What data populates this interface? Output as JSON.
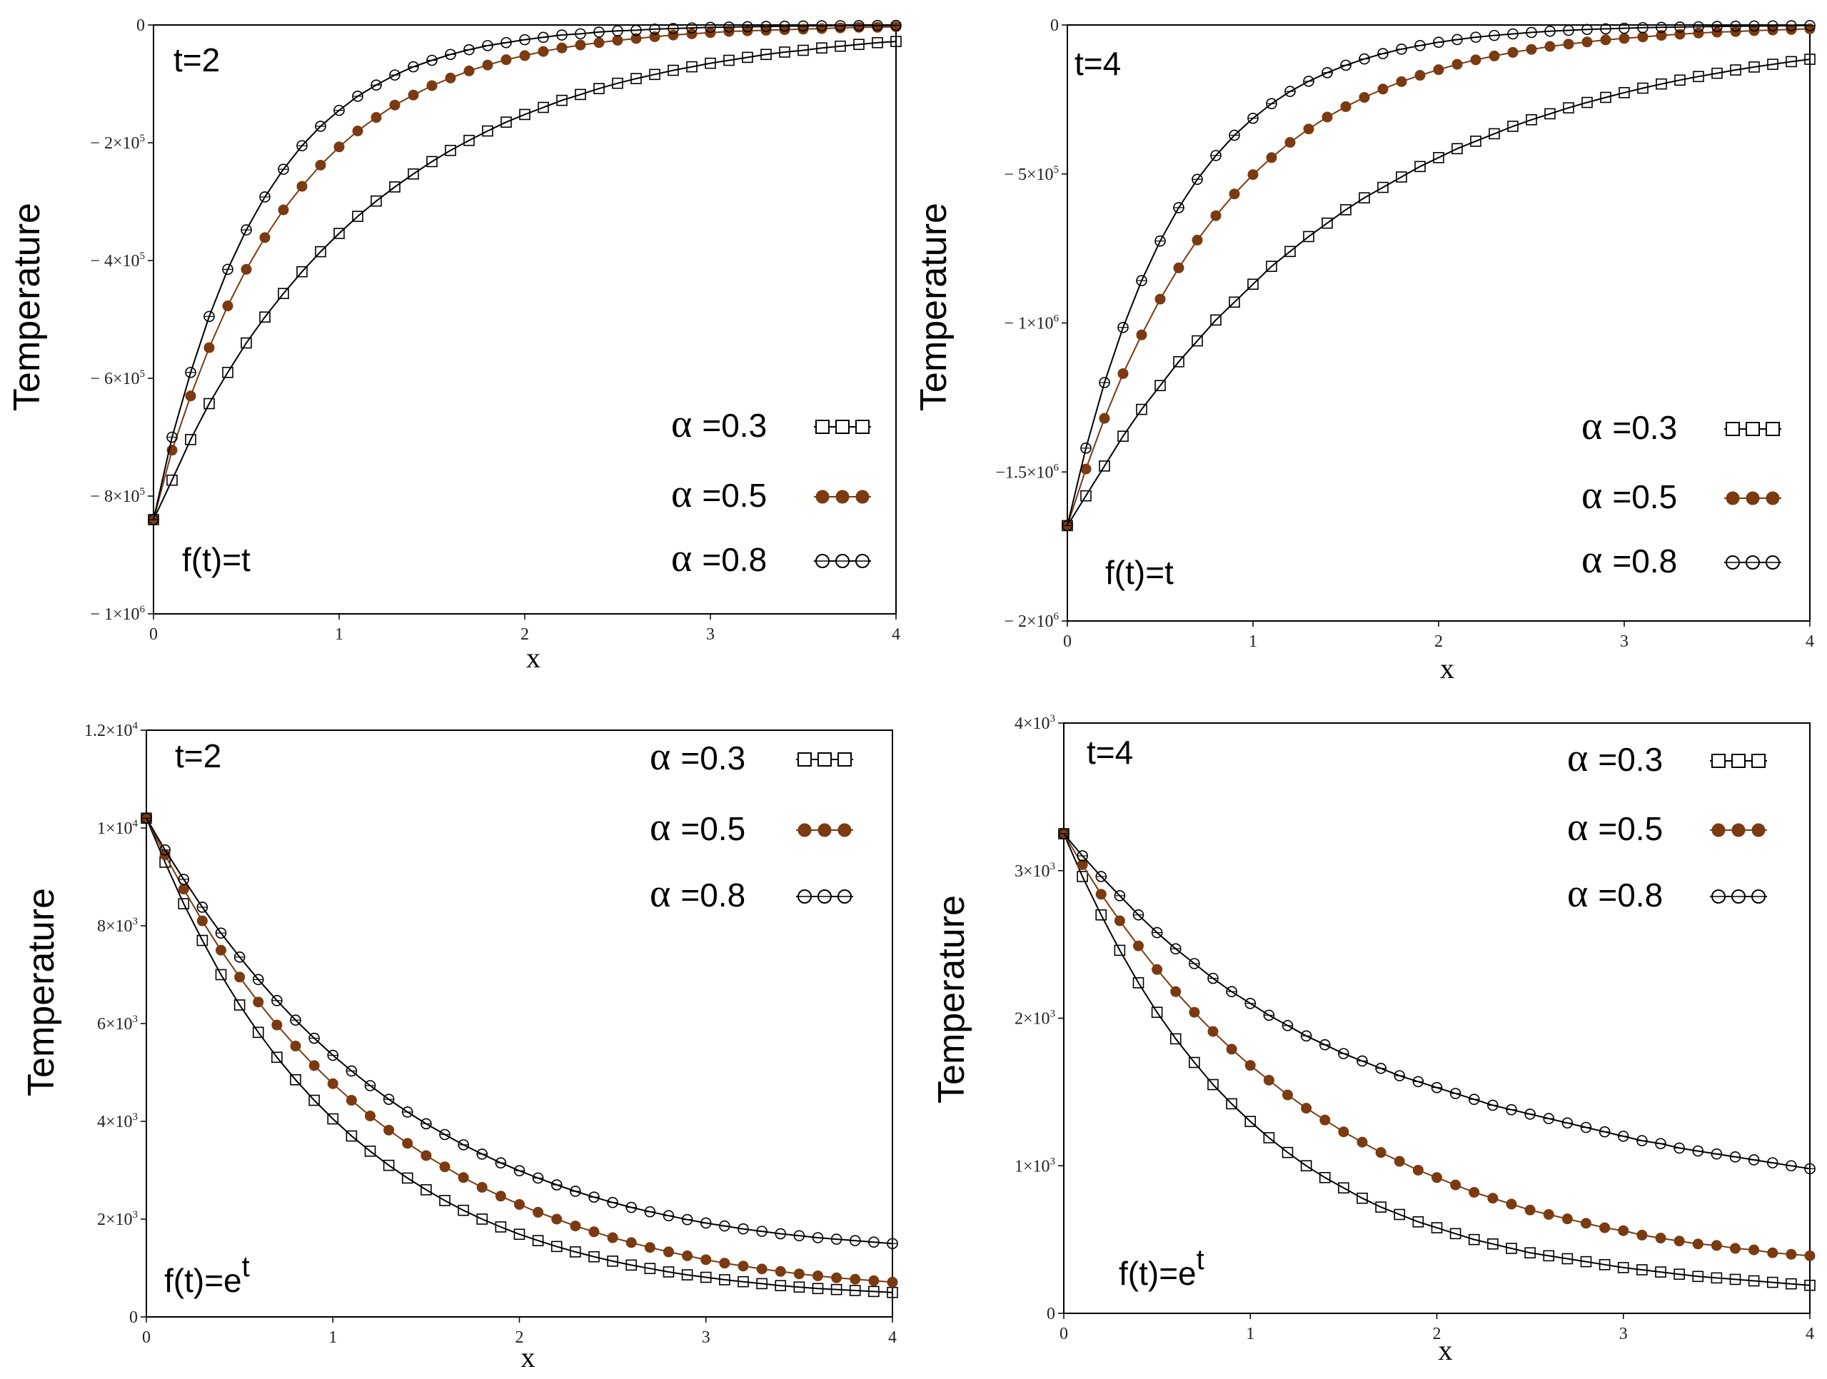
{
  "chart_data": [
    {
      "type": "line",
      "panel": "top-left",
      "annotation_t": "t=2",
      "annotation_f": "f(t)=t",
      "xlabel": "x",
      "ylabel": "Temperature",
      "xlim": [
        0,
        4
      ],
      "ylim": [
        -1000000,
        0
      ],
      "xticks": [
        0,
        1,
        2,
        3,
        4
      ],
      "xtick_labels": [
        "0",
        "1",
        "2",
        "3",
        "4"
      ],
      "yticks": [
        0,
        -200000,
        -400000,
        -600000,
        -800000,
        -1000000
      ],
      "ytick_labels": [
        {
          "base": "0",
          "exp": ""
        },
        {
          "base": "− 2×10",
          "exp": "5"
        },
        {
          "base": "− 4×10",
          "exp": "5"
        },
        {
          "base": "− 6×10",
          "exp": "5"
        },
        {
          "base": "− 8×10",
          "exp": "5"
        },
        {
          "base": "− 1×10",
          "exp": "6"
        }
      ],
      "legend_position": "bottom-right",
      "x": [
        0,
        0.1,
        0.2,
        0.3,
        0.4,
        0.5,
        0.6,
        0.7,
        0.8,
        0.9,
        1.0,
        1.1,
        1.2,
        1.3,
        1.4,
        1.5,
        1.6,
        1.7,
        1.8,
        1.9,
        2.0,
        2.1,
        2.2,
        2.3,
        2.4,
        2.5,
        2.6,
        2.7,
        2.8,
        2.9,
        3.0,
        3.1,
        3.2,
        3.3,
        3.4,
        3.5,
        3.6,
        3.7,
        3.8,
        3.9,
        4.0
      ],
      "series": [
        {
          "name": "α =0.3",
          "alpha_label": "α",
          "value_label": "=0.3",
          "marker": "square",
          "color": "#000000",
          "values": [
            -840000,
            -773000,
            -704000,
            -643000,
            -590000,
            -540000,
            -496000,
            -456000,
            -419000,
            -385000,
            -354000,
            -325000,
            -299000,
            -275000,
            -253000,
            -232000,
            -213000,
            -196000,
            -180000,
            -165000,
            -152000,
            -140000,
            -128000,
            -118000,
            -108000,
            -99000,
            -91000,
            -84000,
            -77000,
            -71000,
            -65000,
            -60000,
            -55000,
            -50000,
            -46000,
            -43000,
            -39000,
            -36000,
            -33000,
            -30000,
            -28000
          ]
        },
        {
          "name": "α =0.5",
          "alpha_label": "α",
          "value_label": "=0.5",
          "marker": "filled-circle",
          "color": "#7b3a10",
          "values": [
            -840000,
            -722000,
            -630000,
            -548000,
            -477000,
            -415000,
            -361000,
            -314000,
            -274000,
            -238000,
            -207000,
            -180000,
            -157000,
            -136000,
            -119000,
            -103000,
            -90000,
            -78000,
            -68000,
            -59000,
            -52000,
            -45000,
            -39000,
            -34000,
            -30000,
            -26000,
            -23000,
            -20000,
            -17000,
            -15000,
            -13000,
            -11000,
            -10000,
            -9000,
            -8000,
            -7000,
            -6000,
            -5000,
            -4000,
            -4000,
            -3000
          ]
        },
        {
          "name": "α =0.8",
          "alpha_label": "α",
          "value_label": "=0.8",
          "marker": "open-circle",
          "color": "#000000",
          "values": [
            -840000,
            -700000,
            -590000,
            -495000,
            -415000,
            -348000,
            -292000,
            -245000,
            -205000,
            -172000,
            -145000,
            -121000,
            -102000,
            -85000,
            -71000,
            -60000,
            -50000,
            -42000,
            -35000,
            -30000,
            -25000,
            -21000,
            -17000,
            -15000,
            -12000,
            -10000,
            -9000,
            -7000,
            -6000,
            -5000,
            -4000,
            -3500,
            -3000,
            -2500,
            -2000,
            -1700,
            -1400,
            -1200,
            -1000,
            -800,
            -700
          ]
        }
      ]
    },
    {
      "type": "line",
      "panel": "top-right",
      "annotation_t": "t=4",
      "annotation_f": "f(t)=t",
      "xlabel": "x",
      "ylabel": "Temperature",
      "xlim": [
        0,
        4
      ],
      "ylim": [
        -2000000,
        0
      ],
      "xticks": [
        0,
        1,
        2,
        3,
        4
      ],
      "xtick_labels": [
        "0",
        "1",
        "2",
        "3",
        "4"
      ],
      "yticks": [
        0,
        -500000,
        -1000000,
        -1500000,
        -2000000
      ],
      "ytick_labels": [
        {
          "base": "0",
          "exp": ""
        },
        {
          "base": "− 5×10",
          "exp": "5"
        },
        {
          "base": "− 1×10",
          "exp": "6"
        },
        {
          "base": "−1.5×10",
          "exp": "6"
        },
        {
          "base": "− 2×10",
          "exp": "6"
        }
      ],
      "legend_position": "bottom-right",
      "x": [
        0,
        0.1,
        0.2,
        0.3,
        0.4,
        0.5,
        0.6,
        0.7,
        0.8,
        0.9,
        1.0,
        1.1,
        1.2,
        1.3,
        1.4,
        1.5,
        1.6,
        1.7,
        1.8,
        1.9,
        2.0,
        2.1,
        2.2,
        2.3,
        2.4,
        2.5,
        2.6,
        2.7,
        2.8,
        2.9,
        3.0,
        3.1,
        3.2,
        3.3,
        3.4,
        3.5,
        3.6,
        3.7,
        3.8,
        3.9,
        4.0
      ],
      "series": [
        {
          "name": "α =0.3",
          "alpha_label": "α",
          "value_label": "=0.3",
          "marker": "square",
          "color": "#000000",
          "values": [
            -1680000,
            -1580000,
            -1480000,
            -1380000,
            -1290000,
            -1210000,
            -1130000,
            -1060000,
            -990000,
            -930000,
            -870000,
            -810000,
            -760000,
            -710000,
            -665000,
            -620000,
            -580000,
            -545000,
            -510000,
            -475000,
            -445000,
            -415000,
            -390000,
            -365000,
            -340000,
            -318000,
            -298000,
            -278000,
            -260000,
            -243000,
            -227000,
            -212000,
            -198000,
            -185000,
            -173000,
            -162000,
            -151000,
            -141000,
            -132000,
            -123000,
            -115000
          ]
        },
        {
          "name": "α =0.5",
          "alpha_label": "α",
          "value_label": "=0.5",
          "marker": "filled-circle",
          "color": "#7b3a10",
          "values": [
            -1680000,
            -1490000,
            -1320000,
            -1170000,
            -1040000,
            -920000,
            -815000,
            -722000,
            -640000,
            -567000,
            -502000,
            -445000,
            -394000,
            -349000,
            -309000,
            -274000,
            -243000,
            -215000,
            -190000,
            -169000,
            -150000,
            -132000,
            -117000,
            -104000,
            -92000,
            -82000,
            -72000,
            -64000,
            -57000,
            -50000,
            -45000,
            -40000,
            -35000,
            -31000,
            -27000,
            -24000,
            -22000,
            -19000,
            -17000,
            -15000,
            -13000
          ]
        },
        {
          "name": "α =0.8",
          "alpha_label": "α",
          "value_label": "=0.8",
          "marker": "open-circle",
          "color": "#000000",
          "values": [
            -1680000,
            -1420000,
            -1200000,
            -1015000,
            -858000,
            -725000,
            -613000,
            -518000,
            -438000,
            -370000,
            -313000,
            -264000,
            -223000,
            -189000,
            -160000,
            -135000,
            -114000,
            -96000,
            -81000,
            -69000,
            -58000,
            -49000,
            -41000,
            -35000,
            -30000,
            -25000,
            -21000,
            -18000,
            -15000,
            -13000,
            -11000,
            -9000,
            -8000,
            -7000,
            -6000,
            -5000,
            -4000,
            -3500,
            -3000,
            -2500,
            -2000
          ]
        }
      ]
    },
    {
      "type": "line",
      "panel": "bottom-left",
      "annotation_t": "t=2",
      "annotation_f_base": "f(t)=e",
      "annotation_f_sup": "t",
      "xlabel": "x",
      "ylabel": "Temperature",
      "xlim": [
        0,
        4
      ],
      "ylim": [
        0,
        12000
      ],
      "xticks": [
        0,
        1,
        2,
        3,
        4
      ],
      "xtick_labels": [
        "0",
        "1",
        "2",
        "3",
        "4"
      ],
      "yticks": [
        0,
        2000,
        4000,
        6000,
        8000,
        10000,
        12000
      ],
      "ytick_labels": [
        {
          "base": "0",
          "exp": ""
        },
        {
          "base": "2×10",
          "exp": "3"
        },
        {
          "base": "4×10",
          "exp": "3"
        },
        {
          "base": "6×10",
          "exp": "3"
        },
        {
          "base": "8×10",
          "exp": "3"
        },
        {
          "base": "1×10",
          "exp": "4"
        },
        {
          "base": "1.2×10",
          "exp": "4"
        }
      ],
      "legend_position": "top-right",
      "x": [
        0,
        0.1,
        0.2,
        0.3,
        0.4,
        0.5,
        0.6,
        0.7,
        0.8,
        0.9,
        1.0,
        1.1,
        1.2,
        1.3,
        1.4,
        1.5,
        1.6,
        1.7,
        1.8,
        1.9,
        2.0,
        2.1,
        2.2,
        2.3,
        2.4,
        2.5,
        2.6,
        2.7,
        2.8,
        2.9,
        3.0,
        3.1,
        3.2,
        3.3,
        3.4,
        3.5,
        3.6,
        3.7,
        3.8,
        3.9,
        4.0
      ],
      "series": [
        {
          "name": "α =0.3",
          "alpha_label": "α",
          "value_label": "=0.3",
          "marker": "square",
          "color": "#000000",
          "values": [
            10200,
            9300,
            8450,
            7700,
            7000,
            6380,
            5820,
            5310,
            4850,
            4430,
            4050,
            3700,
            3390,
            3100,
            2840,
            2600,
            2380,
            2180,
            2000,
            1840,
            1690,
            1560,
            1440,
            1330,
            1230,
            1140,
            1060,
            990,
            920,
            860,
            810,
            760,
            720,
            680,
            640,
            610,
            580,
            560,
            540,
            520,
            500
          ]
        },
        {
          "name": "α =0.5",
          "alpha_label": "α",
          "value_label": "=0.5",
          "marker": "filled-circle",
          "color": "#7b3a10",
          "values": [
            10200,
            9450,
            8750,
            8100,
            7500,
            6950,
            6440,
            5970,
            5540,
            5140,
            4770,
            4430,
            4110,
            3820,
            3550,
            3300,
            3070,
            2850,
            2650,
            2470,
            2300,
            2140,
            2000,
            1860,
            1740,
            1620,
            1520,
            1420,
            1330,
            1250,
            1170,
            1100,
            1040,
            980,
            930,
            880,
            840,
            800,
            770,
            740,
            710
          ]
        },
        {
          "name": "α =0.8",
          "alpha_label": "α",
          "value_label": "=0.8",
          "marker": "open-circle",
          "color": "#000000",
          "values": [
            10200,
            9550,
            8950,
            8380,
            7850,
            7360,
            6900,
            6470,
            6070,
            5700,
            5350,
            5030,
            4730,
            4450,
            4190,
            3950,
            3730,
            3520,
            3330,
            3150,
            2990,
            2840,
            2700,
            2570,
            2450,
            2340,
            2240,
            2150,
            2070,
            1990,
            1920,
            1860,
            1800,
            1750,
            1700,
            1660,
            1620,
            1590,
            1560,
            1530,
            1500
          ]
        }
      ]
    },
    {
      "type": "line",
      "panel": "bottom-right",
      "annotation_t": "t=4",
      "annotation_f_base": "f(t)=e",
      "annotation_f_sup": "t",
      "xlabel": "x",
      "ylabel": "Temperature",
      "xlim": [
        0,
        4
      ],
      "ylim": [
        0,
        4000
      ],
      "xticks": [
        0,
        1,
        2,
        3,
        4
      ],
      "xtick_labels": [
        "0",
        "1",
        "2",
        "3",
        "4"
      ],
      "yticks": [
        0,
        1000,
        2000,
        3000,
        4000
      ],
      "ytick_labels": [
        {
          "base": "0",
          "exp": ""
        },
        {
          "base": "1×10",
          "exp": "3"
        },
        {
          "base": "2×10",
          "exp": "3"
        },
        {
          "base": "3×10",
          "exp": "3"
        },
        {
          "base": "4×10",
          "exp": "3"
        }
      ],
      "legend_position": "top-right",
      "x": [
        0,
        0.1,
        0.2,
        0.3,
        0.4,
        0.5,
        0.6,
        0.7,
        0.8,
        0.9,
        1.0,
        1.1,
        1.2,
        1.3,
        1.4,
        1.5,
        1.6,
        1.7,
        1.8,
        1.9,
        2.0,
        2.1,
        2.2,
        2.3,
        2.4,
        2.5,
        2.6,
        2.7,
        2.8,
        2.9,
        3.0,
        3.1,
        3.2,
        3.3,
        3.4,
        3.5,
        3.6,
        3.7,
        3.8,
        3.9,
        4.0
      ],
      "series": [
        {
          "name": "α =0.3",
          "alpha_label": "α",
          "value_label": "=0.3",
          "marker": "square",
          "color": "#000000",
          "values": [
            3250,
            2960,
            2700,
            2460,
            2240,
            2040,
            1860,
            1700,
            1550,
            1420,
            1300,
            1190,
            1090,
            1000,
            920,
            850,
            780,
            720,
            670,
            620,
            580,
            540,
            500,
            470,
            440,
            410,
            390,
            370,
            350,
            330,
            310,
            295,
            280,
            265,
            250,
            240,
            230,
            220,
            210,
            200,
            190
          ]
        },
        {
          "name": "α =0.5",
          "alpha_label": "α",
          "value_label": "=0.5",
          "marker": "filled-circle",
          "color": "#7b3a10",
          "values": [
            3250,
            3040,
            2840,
            2660,
            2490,
            2330,
            2180,
            2040,
            1910,
            1790,
            1680,
            1580,
            1480,
            1390,
            1310,
            1230,
            1160,
            1090,
            1030,
            970,
            920,
            870,
            820,
            780,
            740,
            700,
            670,
            640,
            610,
            580,
            560,
            530,
            510,
            490,
            470,
            460,
            440,
            430,
            410,
            400,
            390
          ]
        },
        {
          "name": "α =0.8",
          "alpha_label": "α",
          "value_label": "=0.8",
          "marker": "open-circle",
          "color": "#000000",
          "values": [
            3250,
            3100,
            2960,
            2830,
            2700,
            2580,
            2470,
            2370,
            2270,
            2180,
            2100,
            2020,
            1950,
            1880,
            1820,
            1760,
            1710,
            1660,
            1610,
            1570,
            1530,
            1490,
            1450,
            1410,
            1380,
            1350,
            1320,
            1290,
            1260,
            1230,
            1200,
            1170,
            1150,
            1120,
            1100,
            1080,
            1060,
            1040,
            1020,
            1000,
            980
          ]
        }
      ]
    }
  ]
}
